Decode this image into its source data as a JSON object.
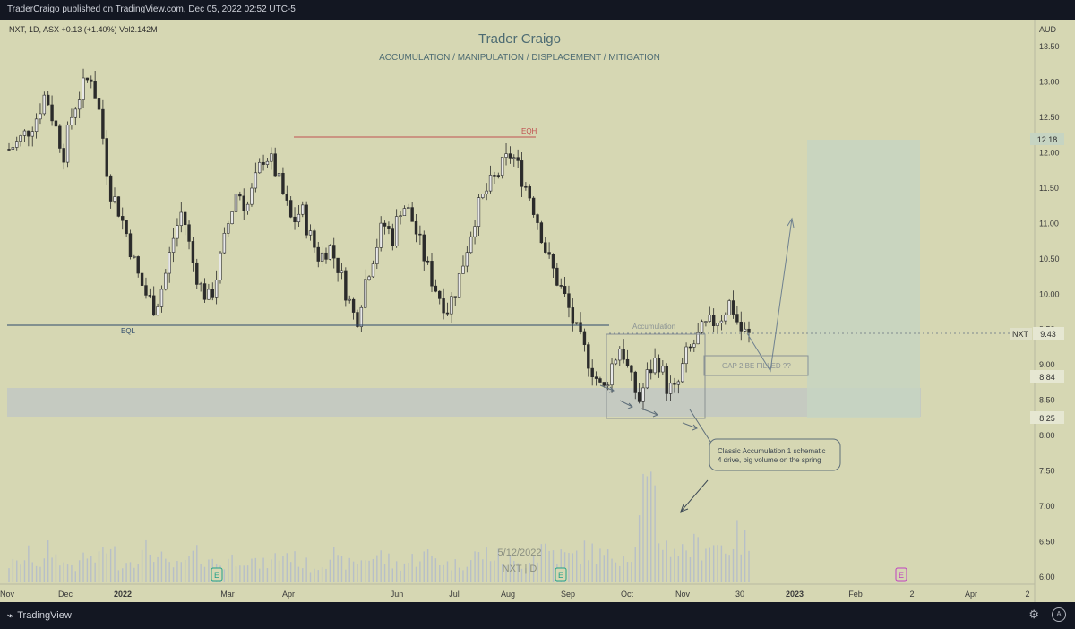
{
  "header": {
    "published": "TraderCraigo published on TradingView.com, Dec 05, 2022 02:52 UTC-5"
  },
  "symbol_info": {
    "text": "NXT, 1D, ASX  +0.13 (+1.40%)  Vol2.142M"
  },
  "chart_title": "Trader Craigo",
  "chart_subtitle": "ACCUMULATION / MANIPULATION / DISPLACEMENT / MITIGATION",
  "currency": "AUD",
  "watermark": {
    "date": "5/12/2022",
    "symbol": "NXT | D"
  },
  "brand": {
    "name": "TradingView"
  },
  "icons": {
    "settings": "gear-icon",
    "auto": "A"
  },
  "colors": {
    "background": "#d6d7b3",
    "candle": "#2b2b2b",
    "volume": "#b7bfc8",
    "eqh": "#c05050",
    "eql": "#2e4a6b",
    "zone": "#c0c7c4",
    "target": "#c6d4c2"
  },
  "annotations": {
    "eqh": "EQH",
    "eql": "EQL",
    "accumulation": "Accumulation",
    "gap": "GAP 2 BE FILLED ??",
    "note_line1": "Classic Accumulation 1 schematic",
    "note_line2": "4 drive, big volume on the spring",
    "earnings_marker": "E"
  },
  "price_labels": {
    "target": "12.18",
    "last": "9.43",
    "last_symbol": "NXT",
    "zone_top": "8.84",
    "zone_bottom": "8.25"
  },
  "chart_data": {
    "type": "candlestick",
    "y_axis": {
      "ticks": [
        "13.50",
        "13.00",
        "12.50",
        "12.00",
        "11.50",
        "11.00",
        "10.50",
        "10.00",
        "9.50",
        "9.00",
        "8.50",
        "8.00",
        "7.50",
        "7.00",
        "6.50",
        "6.00"
      ],
      "min": 6.0,
      "max": 13.5
    },
    "x_axis": {
      "ticks": [
        "Nov",
        "Dec",
        "2022",
        "Mar",
        "Apr",
        "Jun",
        "Jul",
        "Aug",
        "Sep",
        "Oct",
        "Nov",
        "30",
        "2023",
        "Feb",
        "2",
        "Apr",
        "2"
      ]
    },
    "levels": {
      "eqh": 12.18,
      "eql": 9.5,
      "last": 9.43,
      "zone_top": 8.84,
      "zone_bottom": 8.25,
      "target": 12.18
    },
    "close_path": [
      12.05,
      12.15,
      12.3,
      12.5,
      12.85,
      12.4,
      12.0,
      12.6,
      12.9,
      13.1,
      12.5,
      11.5,
      11.2,
      10.8,
      10.3,
      10.0,
      9.8,
      10.2,
      10.8,
      11.2,
      10.5,
      10.1,
      9.9,
      10.4,
      11.0,
      11.5,
      11.2,
      11.6,
      12.0,
      11.8,
      11.4,
      11.0,
      11.2,
      10.8,
      10.5,
      10.7,
      10.4,
      10.0,
      9.6,
      10.2,
      10.6,
      11.0,
      10.8,
      11.3,
      11.1,
      10.7,
      10.3,
      10.0,
      9.8,
      10.1,
      10.6,
      11.1,
      11.4,
      11.6,
      11.8,
      12.0,
      11.7,
      11.4,
      11.0,
      10.5,
      10.2,
      9.9,
      9.5,
      9.2,
      8.9,
      8.6,
      9.0,
      9.3,
      8.8,
      8.5,
      8.9,
      9.1,
      8.7,
      8.6,
      9.1,
      9.3,
      9.5,
      9.6,
      9.7,
      9.9,
      9.5,
      9.4
    ],
    "volume": [
      0.2,
      0.25,
      0.3,
      0.22,
      0.35,
      0.28,
      0.2,
      0.18,
      0.3,
      0.25,
      0.4,
      0.32,
      0.22,
      0.27,
      0.3,
      0.35,
      0.26,
      0.2,
      0.18,
      0.24,
      0.3,
      0.28,
      0.22,
      0.2,
      0.26,
      0.3,
      0.24,
      0.2,
      0.22,
      0.28,
      0.32,
      0.26,
      0.2,
      0.18,
      0.25,
      0.3,
      0.22,
      0.2,
      0.24,
      0.28,
      0.3,
      0.25,
      0.2,
      0.22,
      0.26,
      0.3,
      0.28,
      0.24,
      0.2,
      0.22,
      0.25,
      0.3,
      0.32,
      0.28,
      0.24,
      0.2,
      0.22,
      0.3,
      0.4,
      0.35,
      0.3,
      0.28,
      0.32,
      0.35,
      0.3,
      0.28,
      0.3,
      0.32,
      0.35,
      1.0,
      0.9,
      0.5,
      0.4,
      0.35,
      0.38,
      0.4,
      0.45,
      0.42,
      0.4,
      0.5,
      0.45,
      0.4
    ]
  }
}
